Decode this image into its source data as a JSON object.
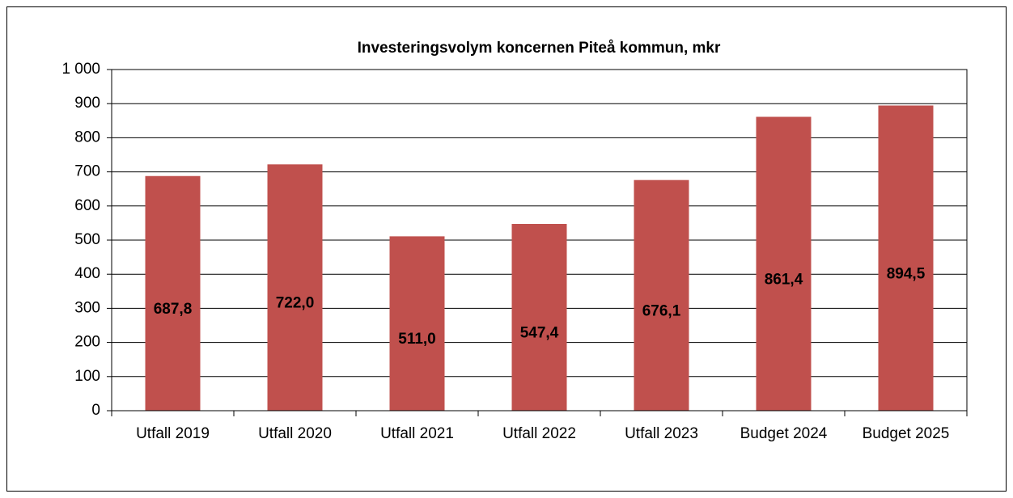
{
  "chart_data": {
    "type": "bar",
    "title": "Investeringsvolym koncernen Piteå kommun, mkr",
    "categories": [
      "Utfall 2019",
      "Utfall 2020",
      "Utfall 2021",
      "Utfall 2022",
      "Utfall 2023",
      "Budget 2024",
      "Budget 2025"
    ],
    "values": [
      687.8,
      722.0,
      511.0,
      547.4,
      676.1,
      861.4,
      894.5
    ],
    "value_labels": [
      "687,8",
      "722,0",
      "511,0",
      "547,4",
      "676,1",
      "861,4",
      "894,5"
    ],
    "color": "#c0504d",
    "ylim": [
      0,
      1000
    ],
    "yticks": [
      0,
      100,
      200,
      300,
      400,
      500,
      600,
      700,
      800,
      900,
      {
        "value": 1000,
        "label": "1 000"
      }
    ],
    "grid": true
  }
}
